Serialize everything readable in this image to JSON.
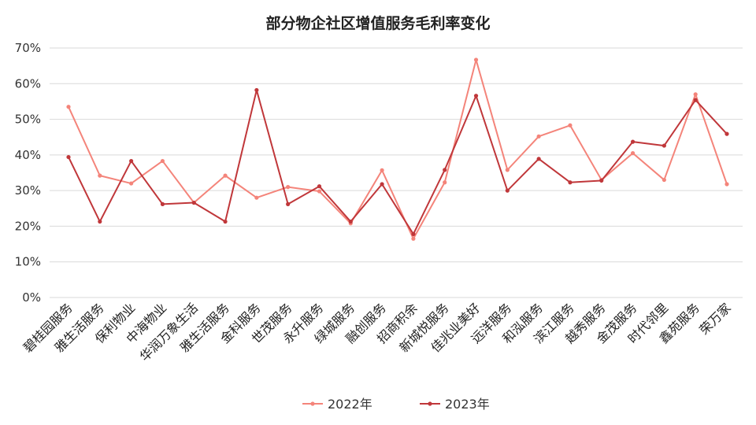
{
  "chart_data": {
    "type": "line",
    "title": "部分物企社区增值服务毛利率变化",
    "ylim": [
      0,
      70
    ],
    "yticks": [
      {
        "value": 0,
        "label": "0%"
      },
      {
        "value": 10,
        "label": "10%"
      },
      {
        "value": 20,
        "label": "20%"
      },
      {
        "value": 30,
        "label": "30%"
      },
      {
        "value": 40,
        "label": "40%"
      },
      {
        "value": 50,
        "label": "50%"
      },
      {
        "value": 60,
        "label": "60%"
      },
      {
        "value": 70,
        "label": "70%"
      }
    ],
    "grid": true,
    "legend_position": "bottom",
    "categories": [
      "碧桂园服务",
      "雅生活服务",
      "保利物业",
      "中海物业",
      "华润万象生活",
      "雅生活服务",
      "金科服务",
      "世茂服务",
      "永升服务",
      "绿城服务",
      "融创服务",
      "招商积余",
      "新城悦服务",
      "佳兆业美好",
      "远洋服务",
      "和泓服务",
      "滨江服务",
      "越秀服务",
      "金茂服务",
      "时代邻里",
      "鑫苑服务",
      "荣万家"
    ],
    "series": [
      {
        "name": "2022年",
        "color": "#f4847a",
        "values": [
          53.5,
          34.2,
          32.0,
          38.3,
          26.6,
          34.2,
          28.0,
          31.0,
          29.8,
          20.8,
          35.7,
          16.5,
          32.3,
          66.7,
          35.8,
          45.2,
          48.3,
          33.0,
          40.5,
          33.0,
          57.0,
          31.8
        ]
      },
      {
        "name": "2023年",
        "color": "#c0373a",
        "values": [
          39.4,
          21.3,
          38.3,
          26.2,
          26.6,
          21.3,
          58.2,
          26.2,
          31.2,
          21.3,
          31.8,
          17.8,
          35.8,
          56.6,
          30.0,
          38.9,
          32.3,
          32.8,
          43.7,
          42.6,
          55.4,
          45.9
        ]
      }
    ]
  }
}
